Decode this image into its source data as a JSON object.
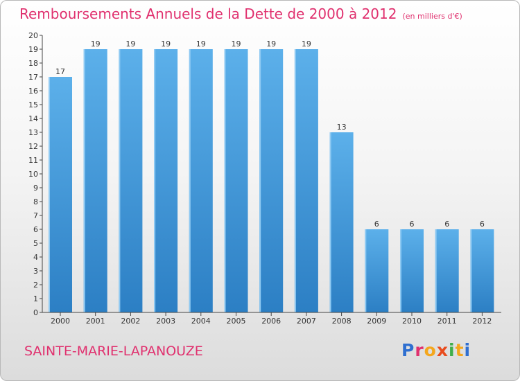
{
  "header": {
    "title": "Remboursements Annuels de la Dette de 2000 à 2012",
    "unit": "(en milliers d'€)"
  },
  "footer": {
    "commune": "SAINTE-MARIE-LAPANOUZE",
    "logo_text": "Proxiti",
    "logo_colors": [
      "#2f6fd0",
      "#e0306e",
      "#f4a71d",
      "#e84c1e",
      "#3fae49",
      "#f4a71d",
      "#2f6fd0"
    ]
  },
  "chart_data": {
    "type": "bar",
    "title": "Remboursements Annuels de la Dette de 2000 à 2012",
    "subtitle": "(en milliers d'€)",
    "categories": [
      "2000",
      "2001",
      "2002",
      "2003",
      "2004",
      "2005",
      "2006",
      "2007",
      "2008",
      "2009",
      "2010",
      "2011",
      "2012"
    ],
    "values": [
      17,
      19,
      19,
      19,
      19,
      19,
      19,
      19,
      13,
      6,
      6,
      6,
      6
    ],
    "value_labels": [
      "17",
      "19",
      "19",
      "19",
      "19",
      "19",
      "19",
      "19",
      "13",
      "6",
      "6",
      "6",
      "6"
    ],
    "ylim": [
      0,
      20
    ],
    "y_ticks": [
      "0",
      "1",
      "2",
      "3",
      "4",
      "5",
      "6",
      "7",
      "8",
      "9",
      "10",
      "11",
      "12",
      "13",
      "14",
      "15",
      "16",
      "17",
      "18",
      "19",
      "20"
    ],
    "grid": false,
    "colors": {
      "bar_light": "#5cb0ea",
      "bar_dark": "#2c7fc4",
      "axis": "#444444"
    }
  }
}
